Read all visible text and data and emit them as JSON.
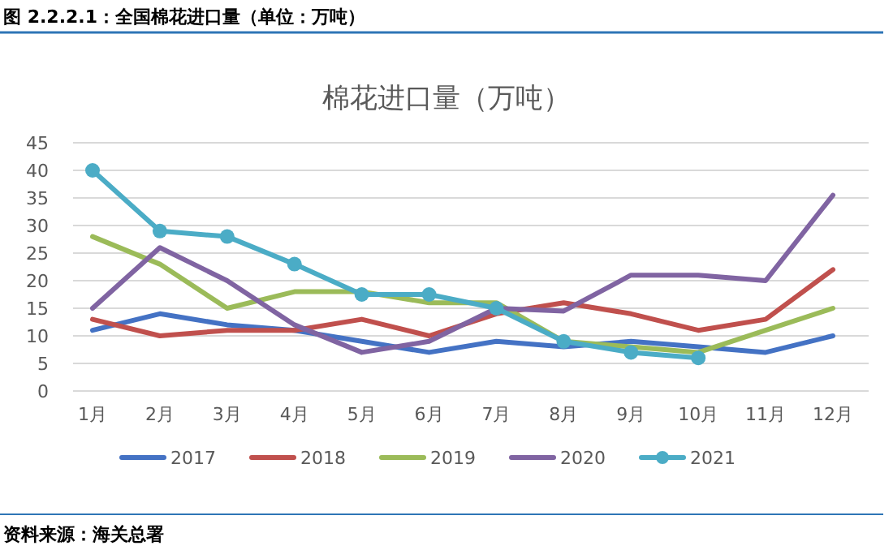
{
  "chart_data": {
    "type": "line",
    "title": "棉花进口量（万吨）",
    "annotations": [
      "图 2.2.2.1：全国棉花进口量（单位：万吨）",
      "资料来源：海关总署"
    ],
    "categories": [
      "1月",
      "2月",
      "3月",
      "4月",
      "5月",
      "6月",
      "7月",
      "8月",
      "9月",
      "10月",
      "11月",
      "12月"
    ],
    "series": [
      {
        "name": "2017",
        "color": "#4472c4",
        "values": [
          11,
          14,
          12,
          11,
          9,
          7,
          9,
          8,
          9,
          8,
          7,
          10
        ]
      },
      {
        "name": "2018",
        "color": "#c0504d",
        "values": [
          13,
          10,
          11,
          11,
          13,
          10,
          14,
          16,
          14,
          11,
          13,
          22
        ]
      },
      {
        "name": "2019",
        "color": "#9bbb59",
        "values": [
          28,
          23,
          15,
          18,
          18,
          16,
          16,
          9,
          8,
          7,
          11,
          15
        ]
      },
      {
        "name": "2020",
        "color": "#8064a2",
        "values": [
          15,
          26,
          20,
          12,
          7,
          9,
          15,
          14.5,
          21,
          21,
          20,
          35.5
        ]
      },
      {
        "name": "2021",
        "color": "#4bacc6",
        "marker": "circle",
        "values": [
          40,
          29,
          28,
          23,
          17.5,
          17.5,
          15,
          9,
          7,
          6,
          null,
          null
        ]
      }
    ],
    "ylim": [
      0,
      45
    ],
    "yticks": [
      0,
      5,
      10,
      15,
      20,
      25,
      30,
      35,
      40,
      45
    ],
    "grid": "y",
    "legend": "bottom",
    "marker": "none",
    "line_style": "solid"
  }
}
